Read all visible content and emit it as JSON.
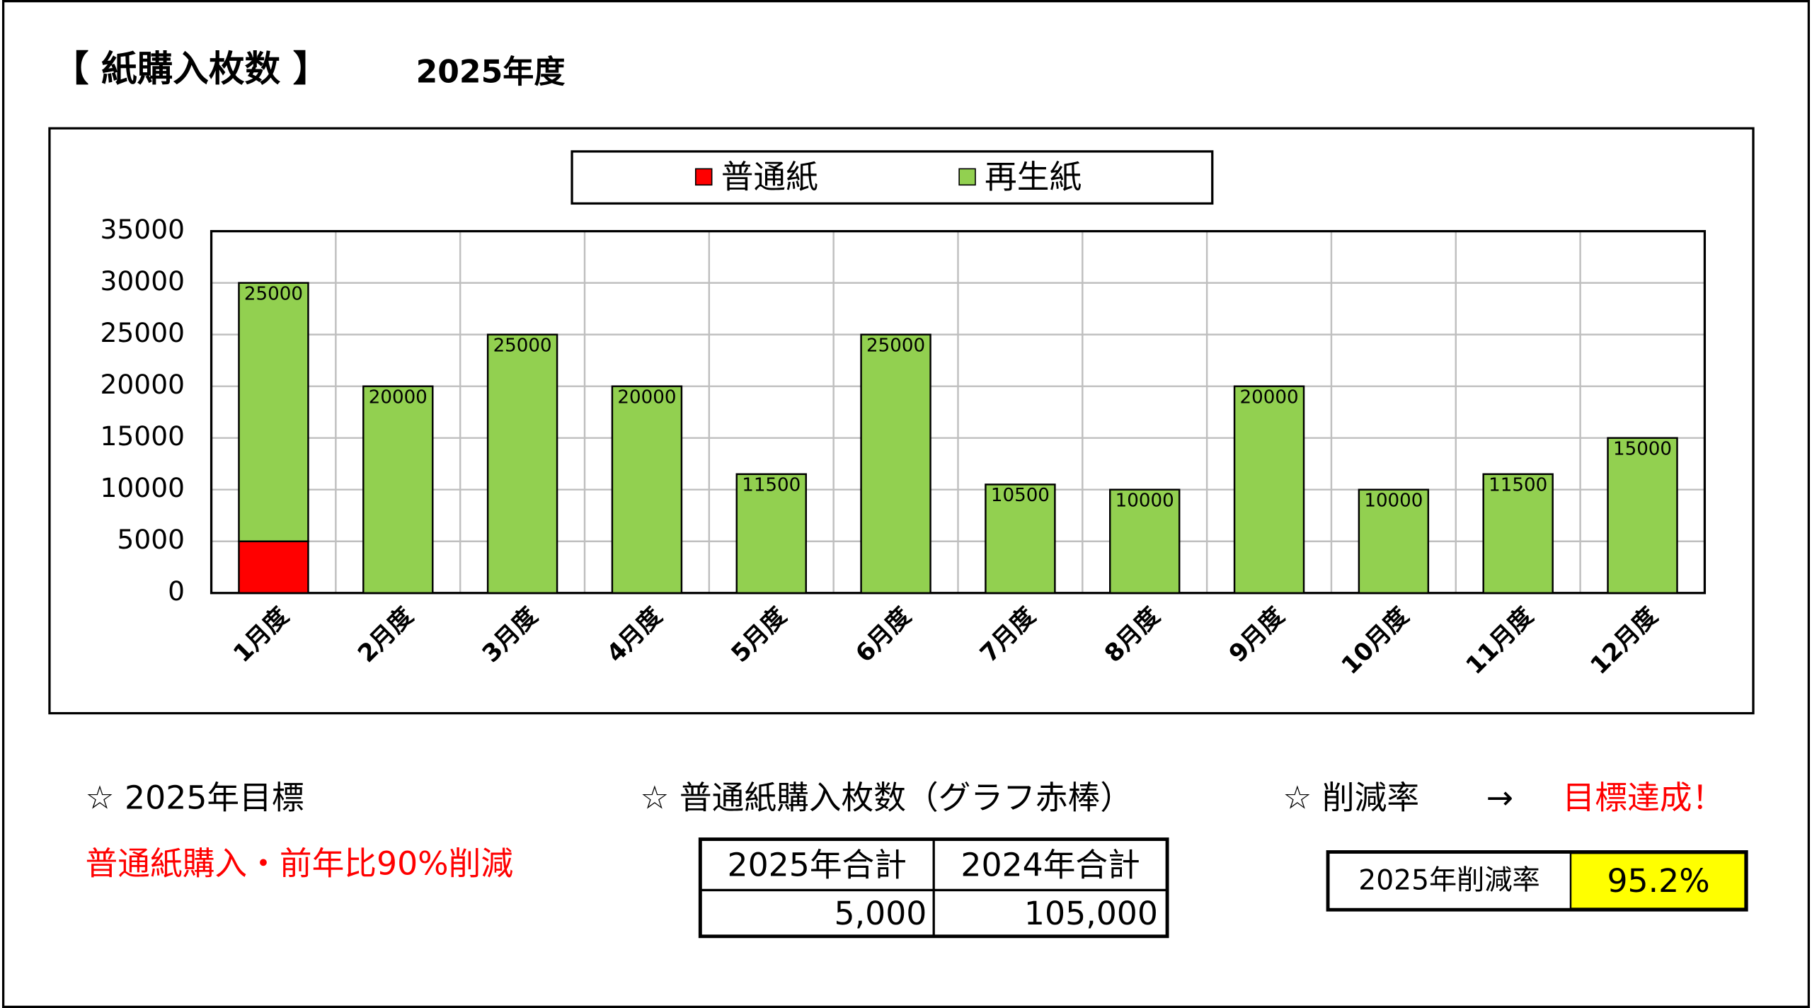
{
  "header": {
    "title": "【 紙購入枚数 】",
    "year": "2025年度"
  },
  "chart_data": {
    "type": "stacked_bar",
    "categories": [
      "1月度",
      "2月度",
      "3月度",
      "4月度",
      "5月度",
      "6月度",
      "7月度",
      "8月度",
      "9月度",
      "10月度",
      "11月度",
      "12月度"
    ],
    "series": [
      {
        "name": "普通紙",
        "color": "#ff0000",
        "values": [
          5000,
          0,
          0,
          0,
          0,
          0,
          0,
          0,
          0,
          0,
          0,
          0
        ]
      },
      {
        "name": "再生紙",
        "color": "#92d050",
        "values": [
          25000,
          20000,
          25000,
          20000,
          11500,
          25000,
          10500,
          10000,
          20000,
          10000,
          11500,
          15000
        ]
      }
    ],
    "ylim": [
      0,
      35000
    ],
    "yticks": [
      0,
      5000,
      10000,
      15000,
      20000,
      25000,
      30000,
      35000
    ],
    "grid": true,
    "legend": "top",
    "data_labels_series": 1
  },
  "goal": {
    "heading": "☆ 2025年目標",
    "text": "普通紙購入・前年比90%削減"
  },
  "purchases": {
    "heading": "☆ 普通紙購入枚数（グラフ赤棒）",
    "table": {
      "header": [
        "2025年合計",
        "2024年合計"
      ],
      "rows": [
        [
          "5,000",
          "105,000"
        ]
      ]
    }
  },
  "reduction": {
    "heading": "☆ 削減率",
    "arrow": "→",
    "result": "目標達成！",
    "label": "2025年削減率",
    "value": "95.2%"
  }
}
